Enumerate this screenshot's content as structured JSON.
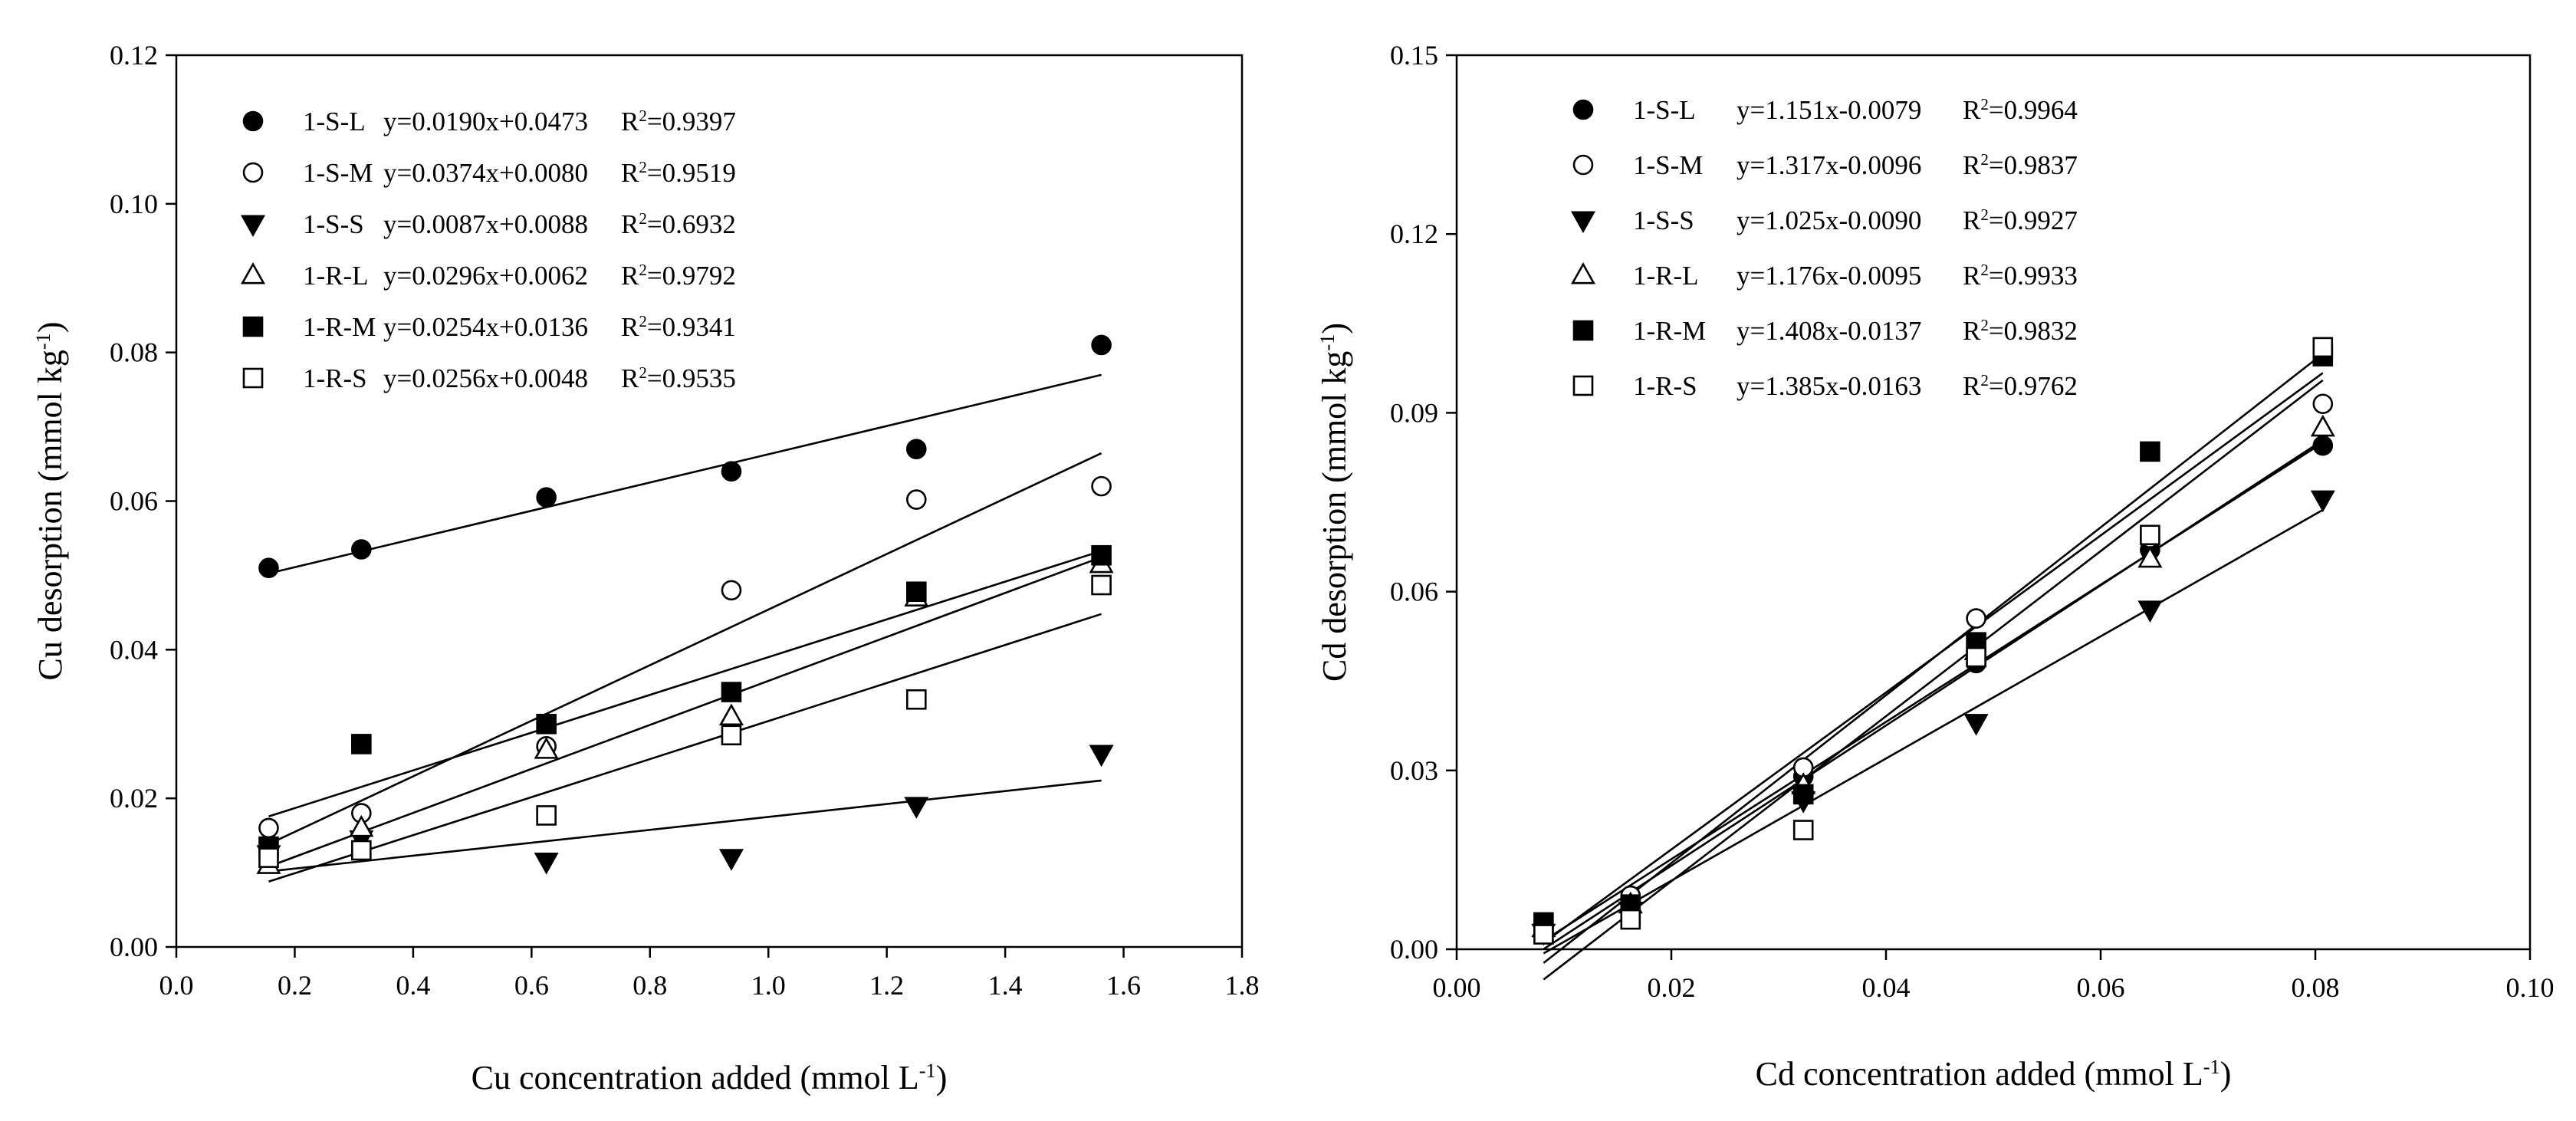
{
  "chart_data": [
    {
      "type": "scatter",
      "xlabel": "Cu concentration added (mmol L",
      "xlabel_sup": "-1",
      "xlabel_end": ")",
      "ylabel": "Cu desorption (mmol kg",
      "ylabel_sup": "-1",
      "ylabel_end": ")",
      "xlim": [
        0.0,
        1.8
      ],
      "ylim": [
        0.0,
        0.12
      ],
      "xticks": [
        "0.0",
        "0.2",
        "0.4",
        "0.6",
        "0.8",
        "1.0",
        "1.2",
        "1.4",
        "1.6",
        "1.8"
      ],
      "yticks": [
        "0.00",
        "0.02",
        "0.04",
        "0.06",
        "0.08",
        "0.10",
        "0.12"
      ],
      "legend_position": "top-left",
      "x": [
        0.156,
        0.3125,
        0.625,
        0.9375,
        1.25,
        1.5625
      ],
      "series": [
        {
          "name": "1-S-L",
          "marker": "filled-circle",
          "eq": "y=0.0190x+0.0473",
          "r2_label": "R",
          "r2_sup": "2",
          "r2_value": "=0.9397",
          "slope": 0.019,
          "intercept": 0.0473,
          "values": [
            0.051,
            0.0535,
            0.0605,
            0.064,
            0.067,
            0.081
          ]
        },
        {
          "name": "1-S-M",
          "marker": "open-circle",
          "eq": "y=0.0374x+0.0080",
          "r2_label": "R",
          "r2_sup": "2",
          "r2_value": "=0.9519",
          "slope": 0.0374,
          "intercept": 0.008,
          "values": [
            0.016,
            0.018,
            0.027,
            0.048,
            0.0602,
            0.062
          ]
        },
        {
          "name": "1-S-S",
          "marker": "filled-triangle-down",
          "eq": "y=0.0087x+0.0088",
          "r2_label": "R",
          "r2_sup": "2",
          "r2_value": "=0.6932",
          "slope": 0.0087,
          "intercept": 0.0088,
          "values": [
            0.0125,
            0.0145,
            0.0115,
            0.012,
            0.019,
            0.026
          ]
        },
        {
          "name": "1-R-L",
          "marker": "open-triangle-up",
          "eq": "y=0.0296x+0.0062",
          "r2_label": "R",
          "r2_sup": "2",
          "r2_value": "=0.9792",
          "slope": 0.0296,
          "intercept": 0.0062,
          "values": [
            0.011,
            0.016,
            0.0265,
            0.031,
            0.047,
            0.0515
          ]
        },
        {
          "name": "1-R-M",
          "marker": "filled-square",
          "eq": "y=0.0254x+0.0136",
          "r2_label": "R",
          "r2_sup": "2",
          "r2_value": "=0.9341",
          "slope": 0.0254,
          "intercept": 0.0136,
          "values": [
            0.0135,
            0.0273,
            0.03,
            0.0343,
            0.0478,
            0.0527
          ]
        },
        {
          "name": "1-R-S",
          "marker": "open-square",
          "eq": "y=0.0256x+0.0048",
          "r2_label": "R",
          "r2_sup": "2",
          "r2_value": "=0.9535",
          "slope": 0.0256,
          "intercept": 0.0048,
          "values": [
            0.012,
            0.013,
            0.0177,
            0.0285,
            0.0333,
            0.0487
          ]
        }
      ]
    },
    {
      "type": "scatter",
      "xlabel": "Cd concentration added (mmol L",
      "xlabel_sup": "-1",
      "xlabel_end": ")",
      "ylabel": "Cd desorption (mmol kg",
      "ylabel_sup": "-1",
      "ylabel_end": ")",
      "xlim": [
        0.0,
        0.1
      ],
      "ylim": [
        0.0,
        0.15
      ],
      "xticks": [
        "0.00",
        "0.02",
        "0.04",
        "0.06",
        "0.08",
        "0.10"
      ],
      "yticks": [
        "0.00",
        "0.03",
        "0.06",
        "0.09",
        "0.12",
        "0.15"
      ],
      "legend_position": "top-left",
      "x": [
        0.0081,
        0.0162,
        0.0323,
        0.0484,
        0.0646,
        0.0807
      ],
      "series": [
        {
          "name": "1-S-L",
          "marker": "filled-circle",
          "eq": "y=1.151x-0.0079",
          "r2_label": "R",
          "r2_sup": "2",
          "r2_value": "=0.9964",
          "slope": 1.151,
          "intercept": -0.0079,
          "values": [
            0.0035,
            0.008,
            0.029,
            0.048,
            0.067,
            0.0845
          ]
        },
        {
          "name": "1-S-M",
          "marker": "open-circle",
          "eq": "y=1.317x-0.0096",
          "r2_label": "R",
          "r2_sup": "2",
          "r2_value": "=0.9837",
          "slope": 1.317,
          "intercept": -0.0096,
          "values": [
            0.003,
            0.009,
            0.0305,
            0.0555,
            0.069,
            0.0915
          ]
        },
        {
          "name": "1-S-S",
          "marker": "filled-triangle-down",
          "eq": "y=1.025x-0.0090",
          "r2_label": "R",
          "r2_sup": "2",
          "r2_value": "=0.9927",
          "slope": 1.025,
          "intercept": -0.009,
          "values": [
            0.0028,
            0.0065,
            0.025,
            0.038,
            0.057,
            0.0755
          ]
        },
        {
          "name": "1-R-L",
          "marker": "open-triangle-up",
          "eq": "y=1.176x-0.0095",
          "r2_label": "R",
          "r2_sup": "2",
          "r2_value": "=0.9933",
          "slope": 1.176,
          "intercept": -0.0095,
          "values": [
            0.0035,
            0.0075,
            0.0275,
            0.05,
            0.0655,
            0.0875
          ]
        },
        {
          "name": "1-R-M",
          "marker": "filled-square",
          "eq": "y=1.408x-0.0137",
          "r2_label": "R",
          "r2_sup": "2",
          "r2_value": "=0.9832",
          "slope": 1.408,
          "intercept": -0.0137,
          "values": [
            0.0045,
            0.0075,
            0.026,
            0.0515,
            0.0835,
            0.0995
          ]
        },
        {
          "name": "1-R-S",
          "marker": "open-square",
          "eq": "y=1.385x-0.0163",
          "r2_label": "R",
          "r2_sup": "2",
          "r2_value": "=0.9762",
          "slope": 1.385,
          "intercept": -0.0163,
          "values": [
            0.0025,
            0.005,
            0.02,
            0.049,
            0.0695,
            0.101
          ]
        }
      ]
    }
  ]
}
